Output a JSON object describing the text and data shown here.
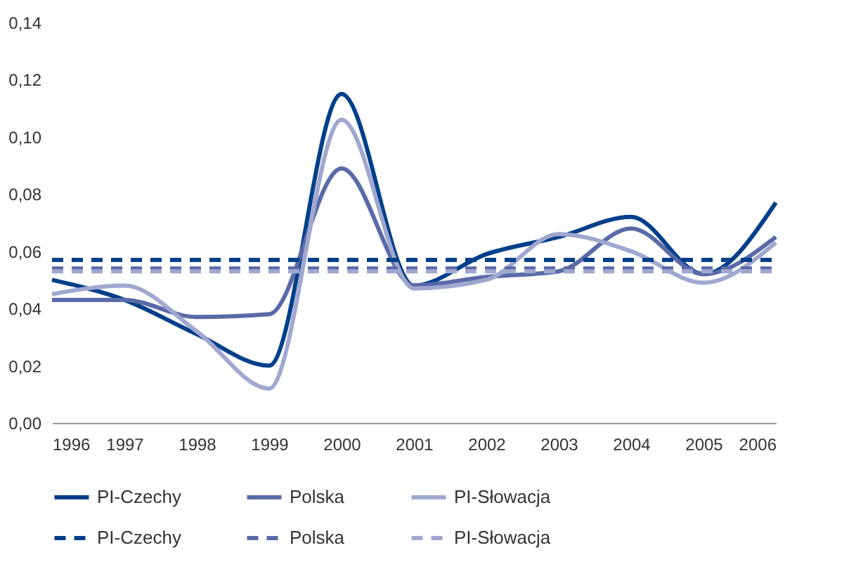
{
  "chart_data": {
    "type": "line",
    "x": [
      1996,
      1997,
      1998,
      1999,
      2000,
      2001,
      2002,
      2003,
      2004,
      2005,
      2006
    ],
    "series": [
      {
        "name": "PI-Czechy",
        "color": "#003f8a",
        "line_style": "solid",
        "values": [
          0.05,
          0.043,
          0.031,
          0.02,
          0.115,
          0.048,
          0.059,
          0.065,
          0.072,
          0.052,
          0.077
        ]
      },
      {
        "name": "Polska",
        "color": "#5a6aa8",
        "line_style": "solid",
        "values": [
          0.043,
          0.043,
          0.037,
          0.038,
          0.089,
          0.048,
          0.051,
          0.053,
          0.068,
          0.052,
          0.065
        ]
      },
      {
        "name": "PI-Słowacja",
        "color": "#a0a8d0",
        "line_style": "solid",
        "values": [
          0.045,
          0.048,
          0.032,
          0.012,
          0.106,
          0.047,
          0.05,
          0.066,
          0.06,
          0.049,
          0.063
        ]
      },
      {
        "name": "PI-Czechy",
        "color": "#003f8a",
        "line_style": "dashed",
        "values": [
          0.057,
          0.057,
          0.057,
          0.057,
          0.057,
          0.057,
          0.057,
          0.057,
          0.057,
          0.057,
          0.057
        ]
      },
      {
        "name": "Polska",
        "color": "#5a6aa8",
        "line_style": "dashed",
        "values": [
          0.054,
          0.054,
          0.054,
          0.054,
          0.054,
          0.054,
          0.054,
          0.054,
          0.054,
          0.054,
          0.054
        ]
      },
      {
        "name": "PI-Słowacja",
        "color": "#a0a8d0",
        "line_style": "dashed",
        "values": [
          0.053,
          0.053,
          0.053,
          0.053,
          0.053,
          0.053,
          0.053,
          0.053,
          0.053,
          0.053,
          0.053
        ]
      }
    ],
    "xlim": [
      1996,
      2006
    ],
    "xticks": [
      1996,
      1997,
      1998,
      1999,
      2000,
      2001,
      2002,
      2003,
      2004,
      2005,
      2006
    ],
    "ylim": [
      0,
      0.14
    ],
    "yticks": [
      {
        "value": 0,
        "label": "0,00"
      },
      {
        "value": 0.02,
        "label": "0,02"
      },
      {
        "value": 0.04,
        "label": "0,04"
      },
      {
        "value": 0.06,
        "label": "0,06"
      },
      {
        "value": 0.08,
        "label": "0,08"
      },
      {
        "value": 0.1,
        "label": "0,10"
      },
      {
        "value": 0.12,
        "label": "0,12"
      },
      {
        "value": 0.14,
        "label": "0,14"
      }
    ],
    "grid": false,
    "legend": "bottom",
    "marker": "none"
  }
}
